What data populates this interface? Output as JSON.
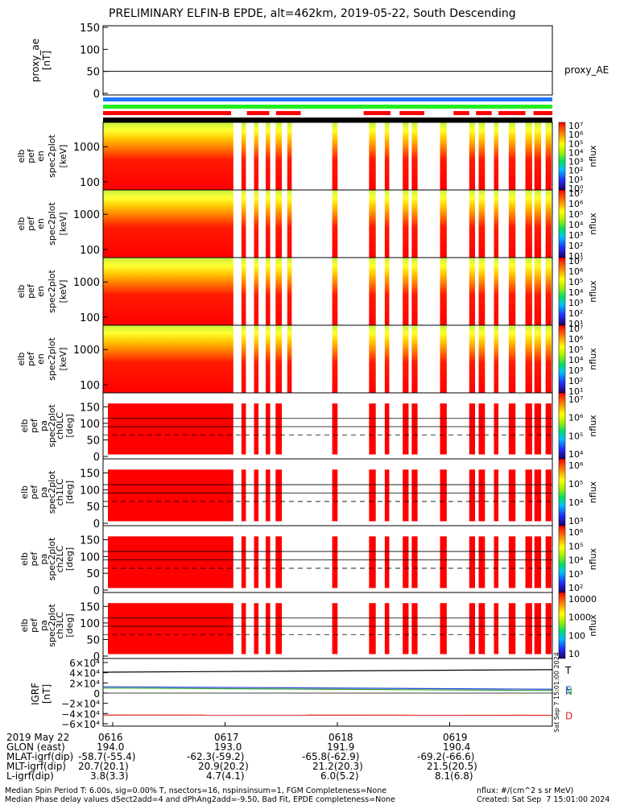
{
  "title": "PRELIMINARY ELFIN-B EPDE, alt=462km, 2019-05-22, South Descending",
  "proxy_ae": {
    "ylabel": [
      "proxy_ae",
      "[nT]"
    ],
    "ticks": [
      "150",
      "100",
      "50",
      "0"
    ],
    "ylim": [
      0,
      150
    ],
    "value": 50,
    "legend": "proxy_AE"
  },
  "bars": {
    "blue": "#1f77ff",
    "green": "#22ee22",
    "red_segments": [
      [
        0.0,
        0.285
      ],
      [
        0.32,
        0.37
      ],
      [
        0.385,
        0.44
      ],
      [
        0.58,
        0.64
      ],
      [
        0.66,
        0.715
      ],
      [
        0.78,
        0.815
      ],
      [
        0.83,
        0.865
      ],
      [
        0.88,
        0.94
      ],
      [
        0.958,
        1.0
      ]
    ]
  },
  "energy_panels": [
    {
      "ylabel": [
        "elb",
        "pef",
        "en",
        "spec2plot",
        "[keV]"
      ],
      "ticks": [
        "1000",
        "100"
      ],
      "colorbar_ticks": [
        "10⁷",
        "10⁶",
        "10⁵",
        "10⁴",
        "10³",
        "10²",
        "10¹",
        "10⁰"
      ],
      "zlabel": "nflux"
    },
    {
      "ylabel": [
        "elb",
        "pef",
        "en",
        "spec2plot",
        "[keV]"
      ],
      "ticks": [
        "1000",
        "100"
      ],
      "colorbar_ticks": [
        "10⁷",
        "10⁶",
        "10⁵",
        "10⁴",
        "10³",
        "10²",
        "10¹"
      ],
      "zlabel": "nflux"
    },
    {
      "ylabel": [
        "elb",
        "pef",
        "en",
        "spec2plot",
        "[keV]"
      ],
      "ticks": [
        "1000",
        "100"
      ],
      "colorbar_ticks": [
        "10⁷",
        "10⁶",
        "10⁵",
        "10⁴",
        "10³",
        "10²",
        "10¹"
      ],
      "zlabel": "nflux"
    },
    {
      "ylabel": [
        "elb",
        "pef",
        "en",
        "spec2plot",
        "[keV]"
      ],
      "ticks": [
        "1000",
        "100"
      ],
      "colorbar_ticks": [
        "10⁷",
        "10⁶",
        "10⁵",
        "10⁴",
        "10³",
        "10²",
        "10¹"
      ],
      "zlabel": "nflux"
    }
  ],
  "pa_panels": [
    {
      "ylabel": [
        "elb",
        "pef",
        "pa",
        "spec2plot",
        "ch0LC",
        "[deg]"
      ],
      "ticks": [
        "150",
        "100",
        "50",
        "0"
      ],
      "colorbar_ticks": [
        "10⁷",
        "10⁶",
        "10⁵",
        "10⁴"
      ],
      "zlabel": "nflux"
    },
    {
      "ylabel": [
        "elb",
        "pef",
        "pa",
        "spec2plot",
        "ch1LC",
        "[deg]"
      ],
      "ticks": [
        "150",
        "100",
        "50",
        "0"
      ],
      "colorbar_ticks": [
        "10⁶",
        "10⁵",
        "10⁴",
        "10³"
      ],
      "zlabel": "nflux"
    },
    {
      "ylabel": [
        "elb",
        "pef",
        "pa",
        "spec2plot",
        "ch2LC",
        "[deg]"
      ],
      "ticks": [
        "150",
        "100",
        "50",
        "0"
      ],
      "colorbar_ticks": [
        "10⁶",
        "10⁵",
        "10⁴",
        "10³",
        "10²"
      ],
      "zlabel": "nflux"
    },
    {
      "ylabel": [
        "elb",
        "pef",
        "pa",
        "spec2plot",
        "ch3LC",
        "[deg]"
      ],
      "ticks": [
        "150",
        "100",
        "50",
        "0"
      ],
      "colorbar_ticks": [
        "10000",
        "1000",
        "100",
        "10"
      ],
      "zlabel": "nflux"
    }
  ],
  "igrf": {
    "ylabel": [
      "IGRF",
      "[nT]"
    ],
    "ticks": [
      "6×10⁴",
      "4×10⁴",
      "2×10⁴",
      "0",
      "−2×10⁴",
      "−4×10⁴",
      "−6×10⁴"
    ],
    "ylim": [
      -60000,
      60000
    ],
    "series": [
      {
        "name": "T",
        "color": "#000000",
        "x": [
          0,
          1
        ],
        "y": [
          41000,
          46000
        ]
      },
      {
        "name": "N",
        "color": "#2e9e2e",
        "x": [
          0,
          1
        ],
        "y": [
          10000,
          5000
        ]
      },
      {
        "name": "E",
        "color": "#1f3fd8",
        "x": [
          0,
          1
        ],
        "y": [
          12500,
          7500
        ]
      },
      {
        "name": "D",
        "color": "#dd2222",
        "x": [
          0,
          1
        ],
        "y": [
          -43000,
          -43500
        ]
      }
    ],
    "created_stamp": "Sat Sep  7 15:01:00 2024"
  },
  "chart_data": {
    "type": "heatmap",
    "title": "PRELIMINARY ELFIN-B EPDE, alt=462km, 2019-05-22, South Descending",
    "xlabel": "2019 May 22",
    "x_ticks": [
      "0616",
      "0617",
      "0618",
      "0619"
    ],
    "note": "spectrogram panels: electron energy (keV) and pitch-angle (deg) spectra, color = nflux"
  },
  "footer": {
    "rows": [
      {
        "label": "2019 May 22",
        "values": [
          "0616",
          "0617",
          "0618",
          "0619"
        ]
      },
      {
        "label": "GLON (east)",
        "values": [
          "194.0",
          "193.0",
          "191.9",
          "190.4"
        ]
      },
      {
        "label": "MLAT-igrf(dip)",
        "values": [
          "-58.7(-55.4)",
          "-62.3(-59.2)",
          "-65.8(-62.9)",
          "-69.2(-66.6)"
        ]
      },
      {
        "label": "MLT-igrf(dip)",
        "values": [
          "20.7(20.1)",
          "20.9(20.2)",
          "21.2(20.3)",
          "21.5(20.5)"
        ]
      },
      {
        "label": "L-igrf(dip)",
        "values": [
          "3.8(3.3)",
          "4.7(4.1)",
          "6.0(5.2)",
          "8.1(6.8)"
        ]
      }
    ],
    "line1_left": "Median Spin Period T: 6.00s, sig=0.00% T, nsectors=16, nspinsinsum=1, FGM Completeness=None",
    "line1_right": "nflux: #/(cm^2 s sr MeV)",
    "line2_left": "Median Phase delay values dSect2add=4 and dPhAng2add=-9.50, Bad Fit, EPDE completeness=None",
    "line2_right": "Created: Sat Sep  7 15:01:00 2024"
  }
}
